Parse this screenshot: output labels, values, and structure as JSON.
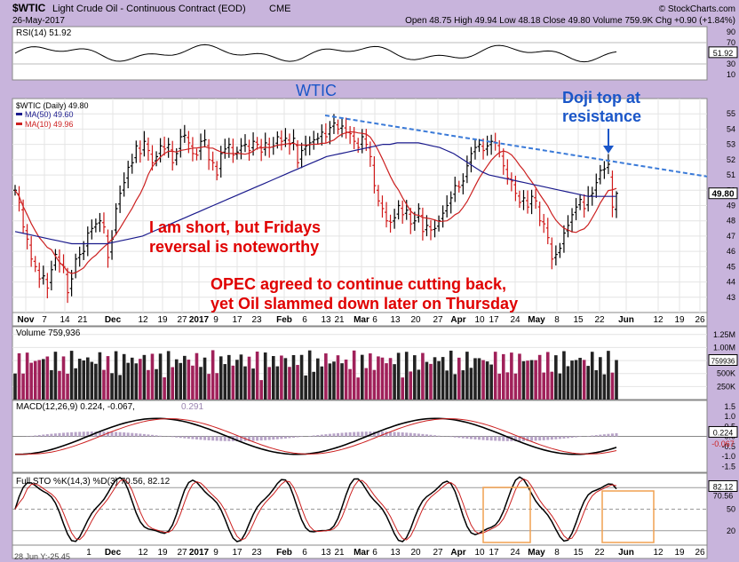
{
  "header": {
    "symbol": "$WTIC",
    "name": "Light Crude Oil - Continuous Contract (EOD)",
    "exchange": "CME",
    "date": "26-May-2017",
    "watermark": "© StockCharts.com",
    "quote": "Open 48.75  High 49.94  Low 48.18  Close 49.80  Volume 759.9K  Chg +0.90 (+1.84%)",
    "up_glyph": "▲"
  },
  "footer": {
    "coords": "28 Jun Y:-25.45"
  },
  "colors": {
    "bg": "#c8b4dc",
    "panel": "#ffffff",
    "price": "#000000",
    "ma50": "#1a1a8c",
    "ma10": "#cc2020",
    "volume": "#a0215a",
    "annotation_red": "#e00000",
    "annotation_blue": "#1a56c8",
    "trendline": "#3a7ad8",
    "box": "#f0a050"
  },
  "panels": {
    "rsi": {
      "label": "RSI(14) 51.92",
      "ticks": [
        "90",
        "70",
        "50",
        "30",
        "10"
      ],
      "last": "51.92"
    },
    "price": {
      "legend": [
        "$WTIC (Daily) 49.80",
        "MA(50) 49.60",
        "MA(10) 49.96"
      ],
      "ticks": [
        "55",
        "54",
        "53",
        "52",
        "51",
        "50",
        "49",
        "48",
        "47",
        "46",
        "45",
        "44",
        "43"
      ],
      "last": "49.80"
    },
    "volume": {
      "label": "Volume 759,936",
      "ticks": [
        "1.25M",
        "1.00M",
        "750K",
        "500K",
        "250K"
      ],
      "last": "759936"
    },
    "macd": {
      "label_main": "MACD(12,26,9) 0.224, -0.067,",
      "label_hist": "0.291",
      "ticks": [
        "1.5",
        "1.0",
        "0.5",
        "0.0",
        "-0.5",
        "-1.0",
        "-1.5"
      ],
      "last1": "0.224",
      "last2": "-0.067"
    },
    "sto": {
      "label": "Full STO %K(14,3) %D(3) 70.56, 82.12",
      "ticks": [
        "80",
        "50",
        "20"
      ],
      "last1": "82.12",
      "last2": "70.56"
    }
  },
  "x_axis_price": [
    "Nov",
    "7",
    "14",
    "21",
    "Dec",
    "12",
    "19",
    "27",
    "2017",
    "9",
    "17",
    "23",
    "Feb",
    "6",
    "13",
    "21",
    "Mar",
    "6",
    "13",
    "20",
    "27",
    "Apr",
    "10",
    "17",
    "24",
    "May",
    "8",
    "15",
    "22",
    "Jun",
    "12",
    "19",
    "26"
  ],
  "x_axis_bottom": [
    "1",
    "Dec",
    "12",
    "19",
    "27",
    "2017",
    "9",
    "17",
    "23",
    "Feb",
    "6",
    "13",
    "21",
    "Mar",
    "6",
    "13",
    "20",
    "27",
    "Apr",
    "10",
    "17",
    "24",
    "May",
    "8",
    "15",
    "22",
    "Jun",
    "12",
    "19",
    "26"
  ],
  "annotations": {
    "wtic": "WTIC",
    "doji_line1": "Doji top at",
    "doji_line2": "resistance",
    "short_line1": "I am short, but Fridays",
    "short_line2": "reversal is noteworthy",
    "opec_line1": "OPEC agreed to continue cutting back,",
    "opec_line2": "yet Oil slammed down later on Thursday"
  },
  "chart_data": {
    "type": "candlestick",
    "title": "$WTIC Light Crude Oil - Continuous Contract (EOD)",
    "last": {
      "open": 48.75,
      "high": 49.94,
      "low": 48.18,
      "close": 49.8,
      "volume": 759936,
      "chg": 0.9,
      "chg_pct": 1.84
    },
    "ylim": [
      42,
      56
    ],
    "close_series": [
      50.0,
      49.2,
      47.6,
      46.8,
      45.5,
      45.0,
      44.2,
      44.4,
      43.6,
      44.8,
      45.8,
      45.2,
      45.0,
      43.3,
      44.2,
      45.5,
      45.8,
      46.0,
      47.2,
      47.5,
      47.8,
      48.0,
      47.6,
      45.6,
      46.8,
      48.8,
      49.8,
      50.5,
      51.5,
      51.8,
      52.9,
      52.4,
      53.2,
      52.6,
      51.8,
      52.2,
      52.9,
      52.7,
      53.0,
      51.8,
      52.4,
      53.5,
      53.6,
      53.1,
      52.4,
      52.3,
      53.2,
      53.3,
      52.0,
      51.8,
      51.0,
      52.4,
      52.7,
      53.0,
      52.3,
      52.5,
      52.9,
      53.0,
      52.6,
      53.2,
      53.0,
      52.5,
      53.1,
      52.8,
      52.9,
      53.5,
      53.2,
      53.4,
      53.0,
      53.4,
      51.8,
      52.6,
      52.9,
      53.1,
      53.3,
      53.4,
      53.8,
      53.5,
      54.1,
      54.4,
      54.0,
      54.2,
      53.8,
      53.7,
      53.2,
      52.8,
      53.5,
      53.0,
      52.2,
      50.3,
      49.3,
      48.8,
      48.0,
      47.9,
      48.2,
      49.0,
      48.4,
      48.7,
      47.8,
      48.0,
      48.8,
      47.3,
      47.7,
      47.4,
      47.5,
      48.0,
      48.5,
      49.0,
      49.5,
      50.3,
      50.2,
      50.6,
      51.6,
      52.4,
      52.8,
      53.0,
      52.6,
      52.9,
      53.2,
      53.1,
      52.5,
      51.6,
      50.8,
      50.6,
      49.8,
      49.2,
      49.5,
      48.9,
      49.6,
      49.3,
      48.0,
      47.8,
      46.9,
      45.5,
      45.8,
      46.2,
      47.2,
      47.7,
      48.4,
      48.9,
      49.4,
      48.8,
      49.6,
      49.8,
      50.5,
      51.3,
      51.4,
      51.7,
      48.9,
      49.8
    ],
    "ma50_series": [
      47.3,
      47.2,
      47.1,
      47.0,
      46.9,
      46.8,
      46.7,
      46.6,
      46.5,
      46.5,
      46.5,
      46.5,
      46.5,
      46.5,
      46.6,
      46.7,
      46.8,
      46.9,
      47.0,
      47.2,
      47.4,
      47.6,
      47.8,
      48.0,
      48.2,
      48.4,
      48.6,
      48.8,
      49.0,
      49.2,
      49.4,
      49.6,
      49.8,
      50.0,
      50.2,
      50.4,
      50.6,
      50.8,
      51.0,
      51.2,
      51.4,
      51.6,
      51.8,
      52.0,
      52.2,
      52.3,
      52.4,
      52.5,
      52.6,
      52.7,
      52.8,
      52.9,
      53.0,
      53.0,
      53.1,
      53.1,
      53.1,
      53.1,
      53.0,
      52.9,
      52.8,
      52.6,
      52.4,
      52.1,
      51.8,
      51.5,
      51.2,
      51.0,
      50.9,
      50.8,
      50.7,
      50.6,
      50.5,
      50.4,
      50.3,
      50.2,
      50.1,
      50.0,
      49.9,
      49.8,
      49.7,
      49.6,
      49.6,
      49.6,
      49.6,
      49.6
    ],
    "annotation_trendline": {
      "from": {
        "date": "Jan 27",
        "price": 54.9
      },
      "to": {
        "date": "Jun 28",
        "price": 50.9
      }
    }
  }
}
